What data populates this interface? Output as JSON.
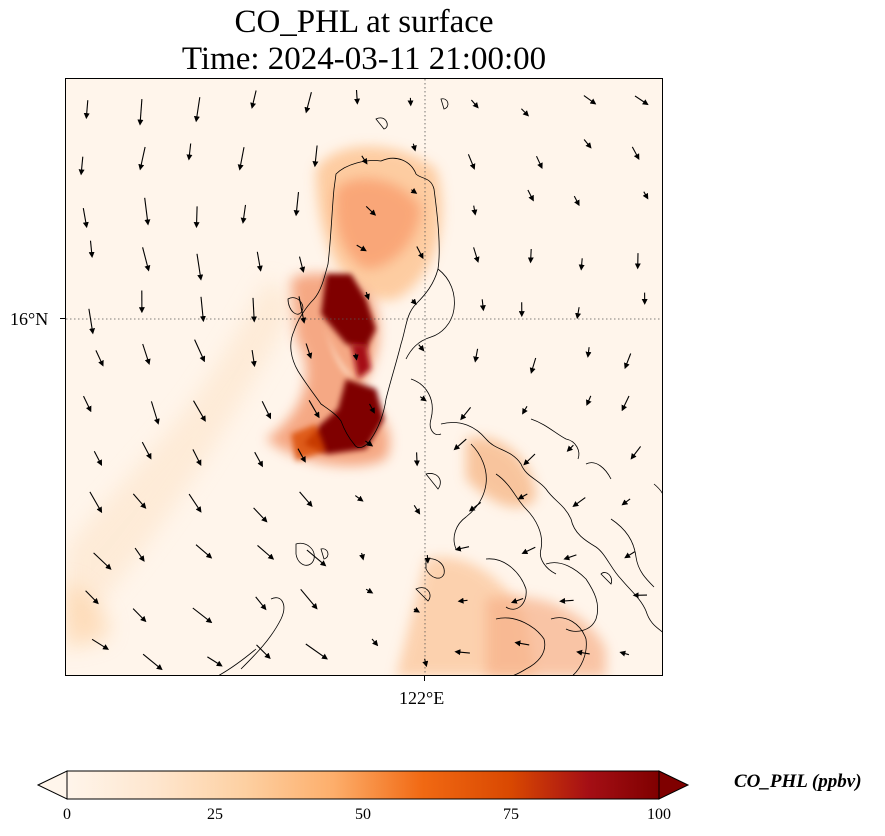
{
  "title": {
    "line1": "CO_PHL at surface",
    "line2": "Time: 2024-03-11 21:00:00"
  },
  "axes": {
    "lat_tick": "16°N",
    "lon_tick": "122°E"
  },
  "colorbar": {
    "label": "CO_PHL (ppbv)",
    "ticks": [
      "0",
      "25",
      "50",
      "75",
      "100"
    ],
    "range": [
      0,
      100
    ],
    "extend": "both",
    "colormap": [
      "#fff5eb",
      "#fee6ce",
      "#fdd0a2",
      "#fdae6b",
      "#f16913",
      "#d94801",
      "#a50f15",
      "#7f0000"
    ]
  },
  "map": {
    "gridlines": "dotted",
    "background_color": "#fff5eb",
    "coastline_color": "#000000",
    "overlay": "wind vectors (black arrows)"
  }
}
